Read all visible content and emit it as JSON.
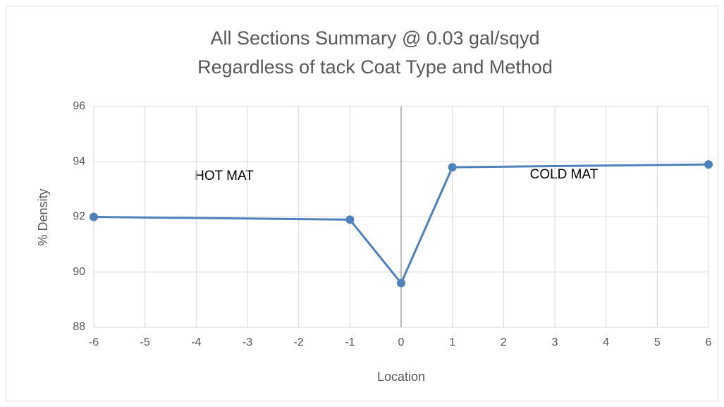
{
  "chart_data": {
    "type": "line",
    "title": "All Sections Summary @ 0.03 gal/sqyd",
    "subtitle": "Regardless of tack Coat Type and Method",
    "x_label": "Location",
    "y_label": "% Density",
    "x": [
      -6,
      -1,
      0,
      1,
      6
    ],
    "series": [
      {
        "name": "% Density",
        "color": "#4f81bd",
        "values": [
          92.0,
          91.9,
          89.6,
          93.8,
          93.9
        ]
      }
    ],
    "xlim": [
      -6,
      6
    ],
    "xticks": [
      -6,
      -5,
      -4,
      -3,
      -2,
      -1,
      0,
      1,
      2,
      3,
      4,
      5,
      6
    ],
    "ylim": [
      88,
      96
    ],
    "yticks": [
      88,
      90,
      92,
      94,
      96
    ],
    "grid": true,
    "annotations": [
      "HOT MAT",
      "COLD MAT"
    ]
  }
}
